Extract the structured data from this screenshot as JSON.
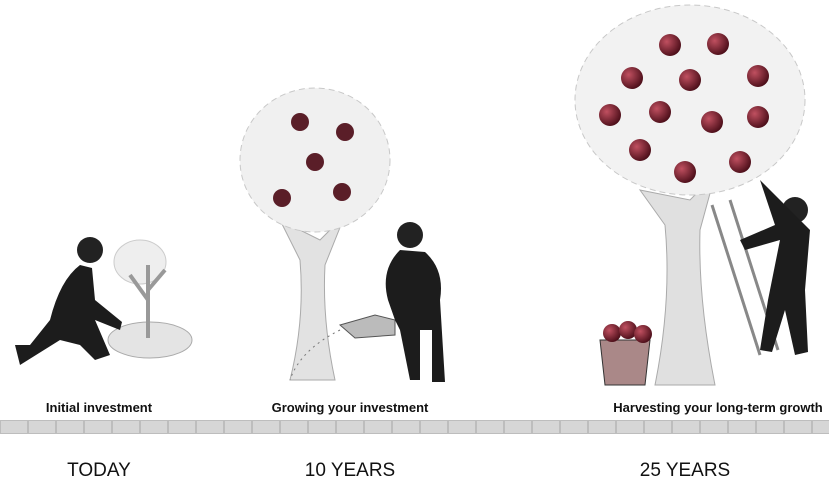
{
  "stages": [
    {
      "caption": "Initial investment",
      "time": "TODAY"
    },
    {
      "caption": "Growing your investment",
      "time": "10 YEARS"
    },
    {
      "caption": "Harvesting your long-term growth",
      "time": "25 YEARS"
    }
  ]
}
